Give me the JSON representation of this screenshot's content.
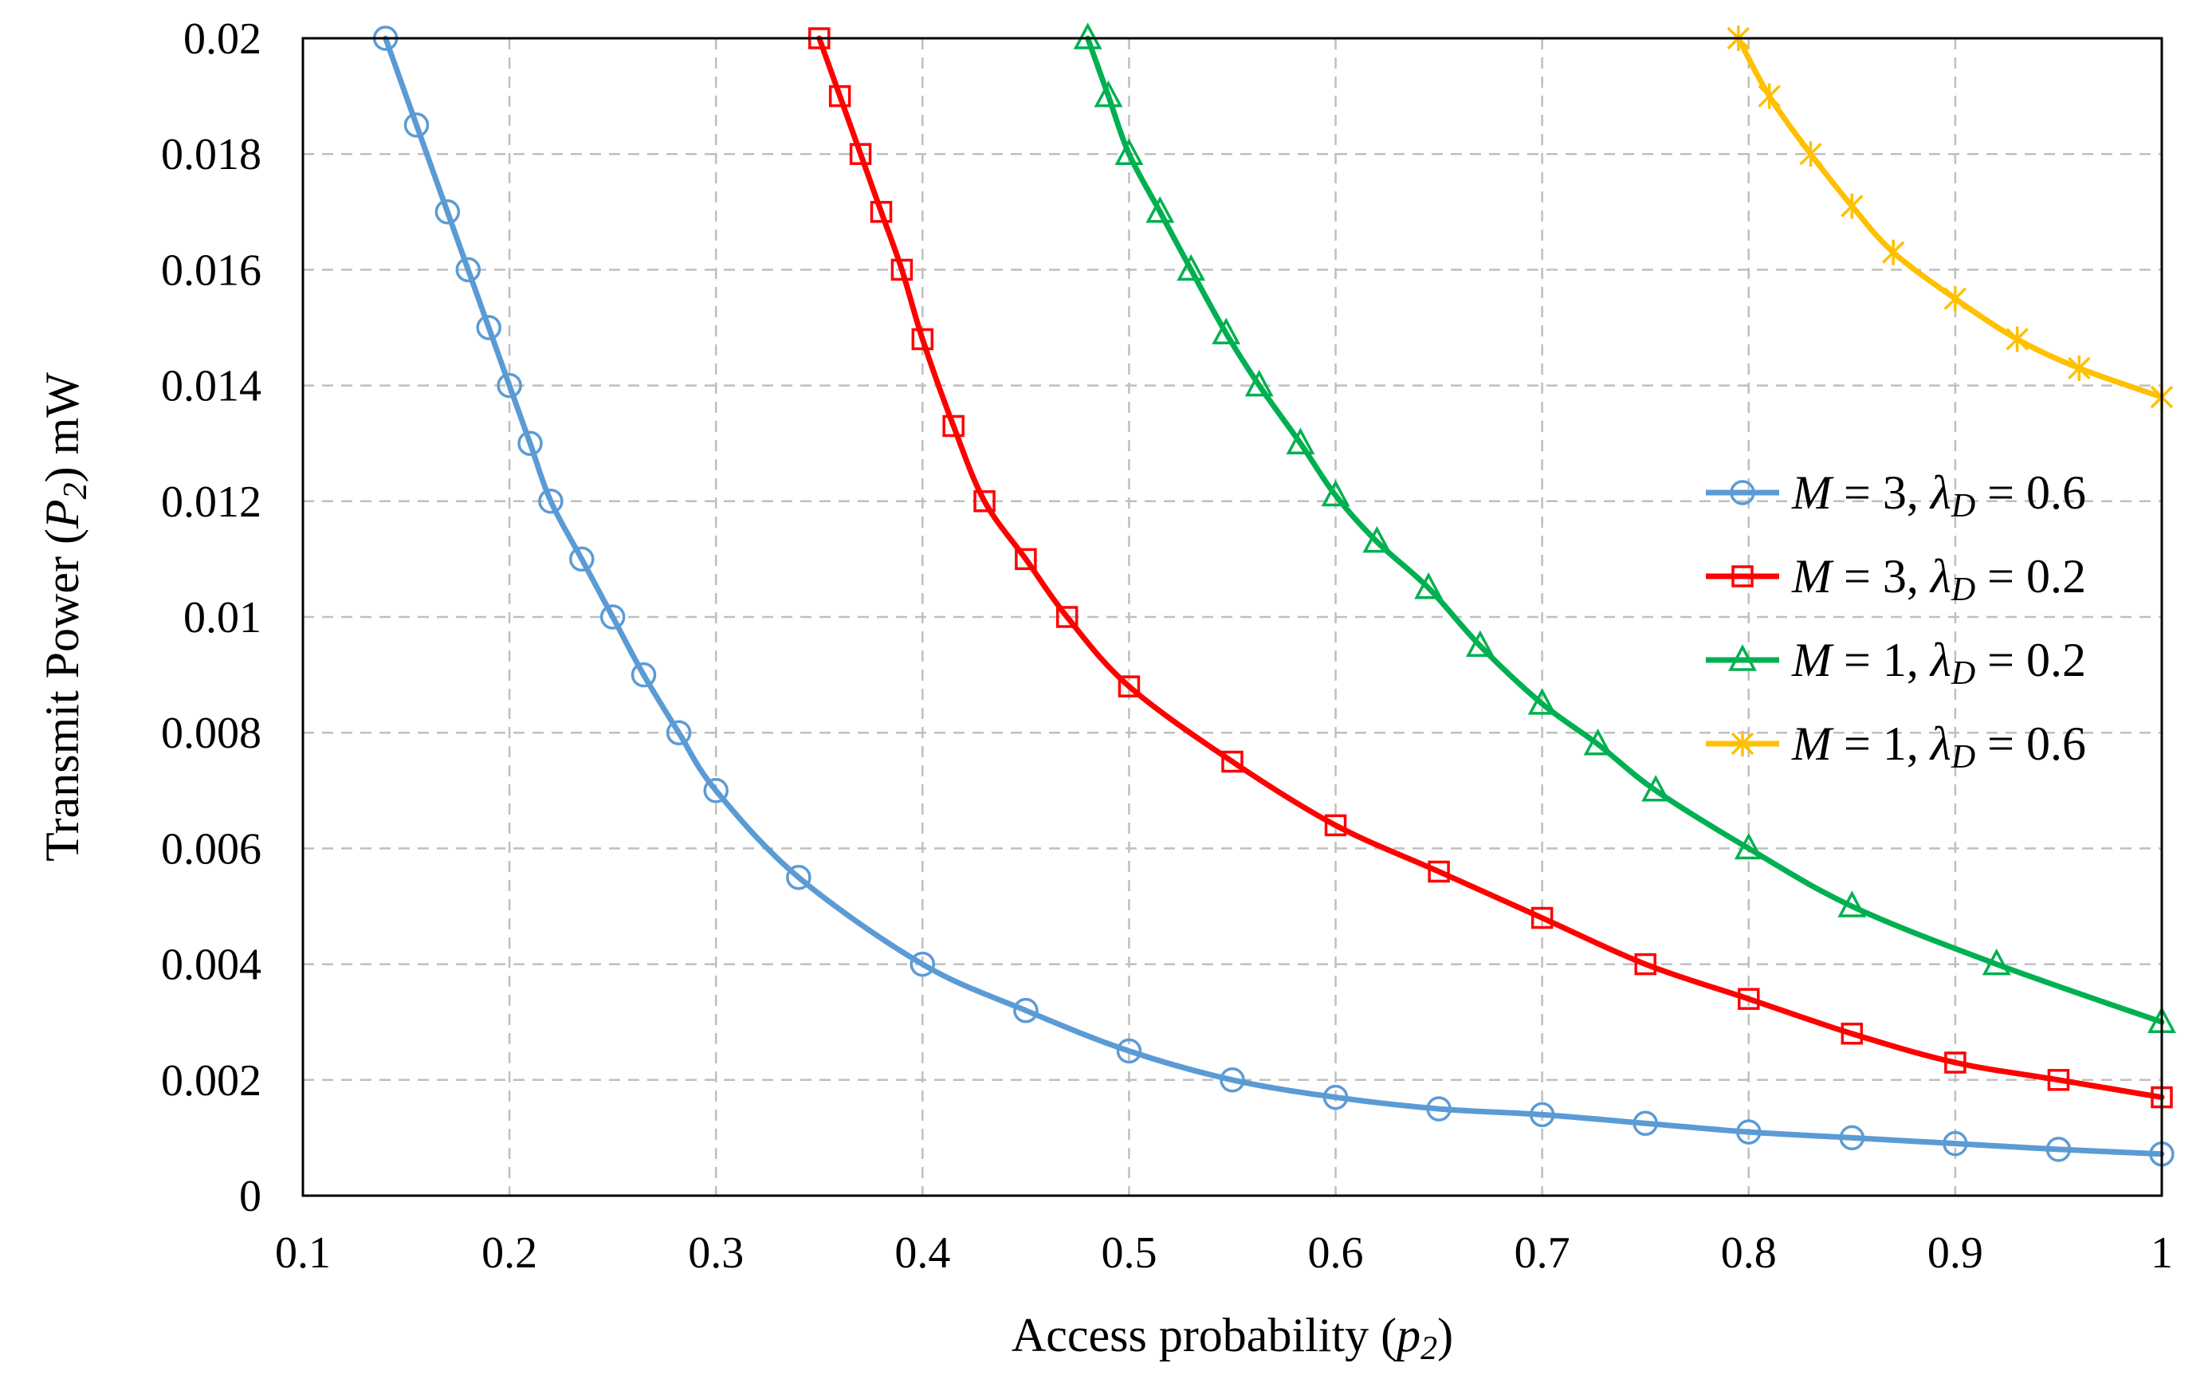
{
  "chart_data": {
    "type": "line",
    "title": "",
    "xlabel": {
      "main": "Access probability (",
      "var": "p",
      "sub": "2",
      "close": ")"
    },
    "ylabel": {
      "main": "Transmit Power (",
      "var": "P",
      "sub": "2",
      "close": ") mW"
    },
    "xlim": [
      0.1,
      1.0
    ],
    "ylim": [
      0,
      0.02
    ],
    "grid": true,
    "xticks": [
      0.1,
      0.2,
      0.3,
      0.4,
      0.5,
      0.6,
      0.7,
      0.8,
      0.9,
      1.0
    ],
    "xtick_labels": [
      "0.1",
      "0.2",
      "0.3",
      "0.4",
      "0.5",
      "0.6",
      "0.7",
      "0.8",
      "0.9",
      "1"
    ],
    "yticks": [
      0,
      0.002,
      0.004,
      0.006,
      0.008,
      0.01,
      0.012,
      0.014,
      0.016,
      0.018,
      0.02
    ],
    "ytick_labels": [
      "0",
      "0.002",
      "0.004",
      "0.006",
      "0.008",
      "0.01",
      "0.012",
      "0.014",
      "0.016",
      "0.018",
      "0.02"
    ],
    "legend_position": "right",
    "series": [
      {
        "name": "M = 3,  λD = 0.6",
        "label": {
          "M": "3",
          "lambda": "0.6"
        },
        "color": "#5b9bd5",
        "marker": "circle",
        "x": [
          0.14,
          0.155,
          0.17,
          0.18,
          0.19,
          0.2,
          0.21,
          0.22,
          0.235,
          0.25,
          0.265,
          0.282,
          0.3,
          0.34,
          0.4,
          0.45,
          0.5,
          0.55,
          0.6,
          0.65,
          0.7,
          0.75,
          0.8,
          0.85,
          0.9,
          0.95,
          1.0
        ],
        "y": [
          0.02,
          0.0185,
          0.017,
          0.016,
          0.015,
          0.014,
          0.013,
          0.012,
          0.011,
          0.01,
          0.009,
          0.008,
          0.007,
          0.0055,
          0.004,
          0.0032,
          0.0025,
          0.002,
          0.0017,
          0.0015,
          0.0014,
          0.00125,
          0.0011,
          0.001,
          0.0009,
          0.0008,
          0.00072
        ]
      },
      {
        "name": "M = 3,  λD = 0.2",
        "label": {
          "M": "3",
          "lambda": "0.2"
        },
        "color": "#ff0000",
        "marker": "square",
        "x": [
          0.35,
          0.36,
          0.37,
          0.38,
          0.39,
          0.4,
          0.415,
          0.43,
          0.45,
          0.47,
          0.5,
          0.55,
          0.6,
          0.65,
          0.7,
          0.75,
          0.8,
          0.85,
          0.9,
          0.95,
          1.0
        ],
        "y": [
          0.02,
          0.019,
          0.018,
          0.017,
          0.016,
          0.0148,
          0.0133,
          0.012,
          0.011,
          0.01,
          0.0088,
          0.0075,
          0.0064,
          0.0056,
          0.0048,
          0.004,
          0.0034,
          0.0028,
          0.0023,
          0.002,
          0.0017
        ]
      },
      {
        "name": "M = 1,  λD = 0.2",
        "label": {
          "M": "1",
          "lambda": "0.2"
        },
        "color": "#00b050",
        "marker": "triangle",
        "x": [
          0.48,
          0.49,
          0.5,
          0.515,
          0.53,
          0.547,
          0.563,
          0.583,
          0.6,
          0.62,
          0.645,
          0.67,
          0.7,
          0.727,
          0.755,
          0.8,
          0.85,
          0.92,
          1.0
        ],
        "y": [
          0.02,
          0.019,
          0.018,
          0.017,
          0.016,
          0.0149,
          0.014,
          0.013,
          0.0121,
          0.0113,
          0.0105,
          0.0095,
          0.0085,
          0.0078,
          0.007,
          0.006,
          0.005,
          0.004,
          0.003
        ]
      },
      {
        "name": "M = 1,  λD = 0.6",
        "label": {
          "M": "1",
          "lambda": "0.6"
        },
        "color": "#ffc000",
        "marker": "star",
        "x": [
          0.795,
          0.81,
          0.83,
          0.85,
          0.87,
          0.9,
          0.93,
          0.96,
          1.0
        ],
        "y": [
          0.02,
          0.019,
          0.018,
          0.0171,
          0.0163,
          0.0155,
          0.0148,
          0.0143,
          0.0138
        ]
      }
    ]
  }
}
